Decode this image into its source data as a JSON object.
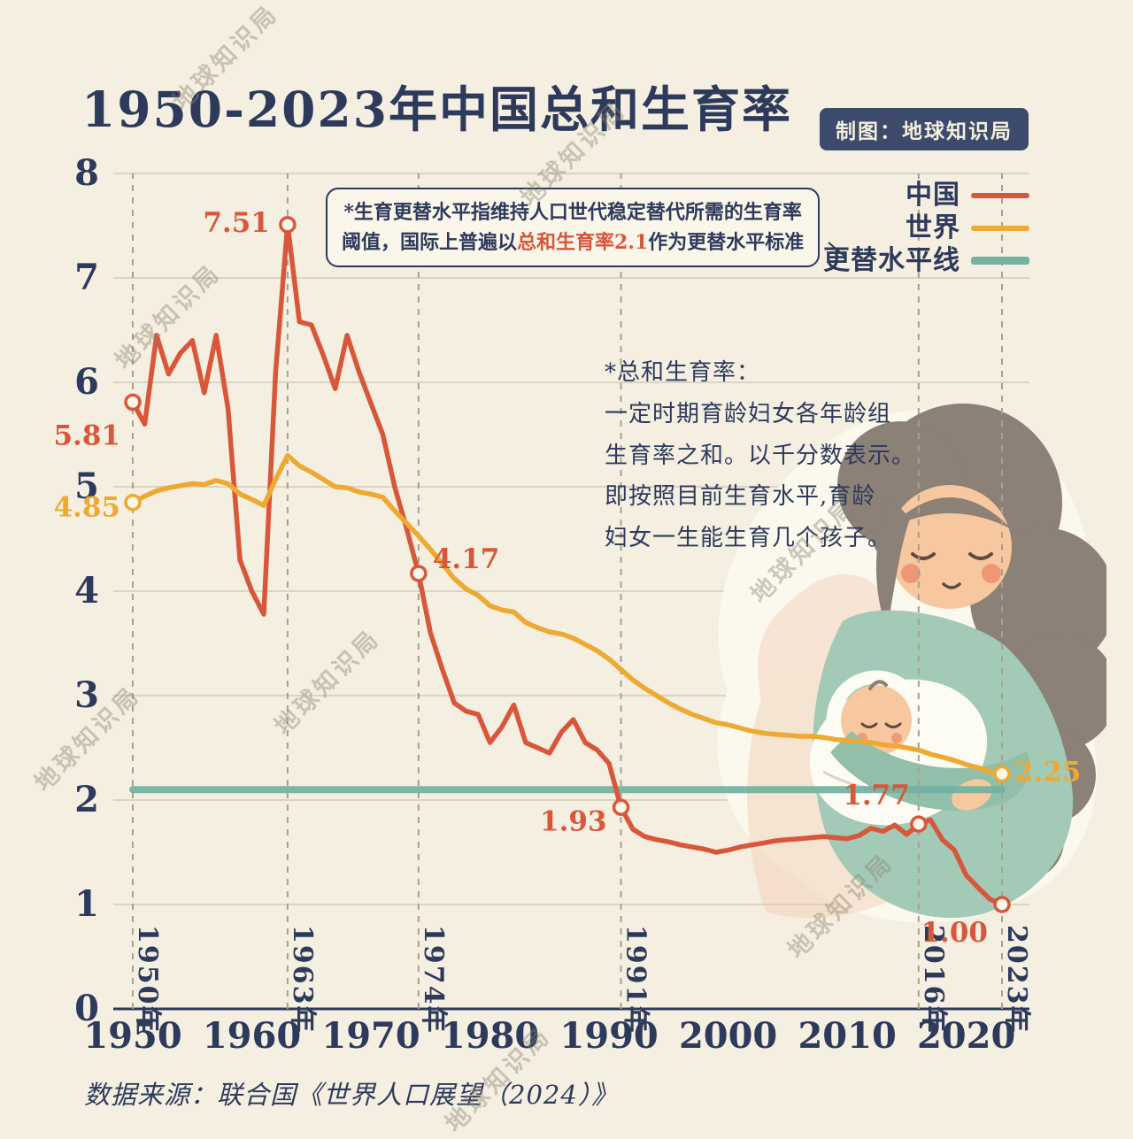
{
  "header": {
    "title": "1950-2023年中国总和生育率",
    "credit": "制图：地球知识局"
  },
  "watermark": "地球知识局",
  "colors": {
    "china": "#d8573b",
    "world": "#eda932",
    "replacement": "#72b2a1",
    "navy": "#2e3a5c",
    "badge": "#3c4a6b",
    "grid": "#d2cbb8",
    "dash": "#a9a08c"
  },
  "legend": [
    {
      "label": "中国",
      "key": "china"
    },
    {
      "label": "世界",
      "key": "world"
    },
    {
      "label": "更替水平线",
      "key": "replacement"
    }
  ],
  "annotation_box": {
    "line1": "*生育更替水平指维持人口世代稳定替代所需的生育率",
    "line2_pre": "阈值，国际上普遍以",
    "line2_highlight": "总和生育率2.1",
    "line2_post": "作为更替水平标准"
  },
  "note": {
    "text": "*总和生育率：\n一定时期育龄妇女各年龄组\n生育率之和。以千分数表示。\n即按照目前生育水平,育龄\n妇女一生能生育几个孩子。"
  },
  "footer": {
    "source": "数据来源：联合国《世界人口展望（2024）》"
  },
  "chart_data": {
    "type": "line",
    "title": "1950-2023年中国总和生育率",
    "xlabel": "",
    "ylabel": "",
    "x_range": [
      1950,
      2023
    ],
    "y_range": [
      0,
      8
    ],
    "x_ticks": [
      1950,
      1960,
      1970,
      1980,
      1990,
      2000,
      2010,
      2020
    ],
    "y_ticks": [
      0,
      1,
      2,
      3,
      4,
      5,
      6,
      7,
      8
    ],
    "grid": true,
    "legend_position": "top-right",
    "replacement_level": 2.1,
    "milestones": [
      {
        "year": 1950,
        "label": "1950年"
      },
      {
        "year": 1963,
        "label": "1963年"
      },
      {
        "year": 1974,
        "label": "1974年"
      },
      {
        "year": 1991,
        "label": "1991年"
      },
      {
        "year": 2016,
        "label": "2016年"
      },
      {
        "year": 2023,
        "label": "2023年"
      }
    ],
    "series": [
      {
        "name": "中国",
        "key": "china",
        "points": [
          [
            1950,
            5.81
          ],
          [
            1951,
            5.6
          ],
          [
            1952,
            6.45
          ],
          [
            1953,
            6.08
          ],
          [
            1954,
            6.28
          ],
          [
            1955,
            6.4
          ],
          [
            1956,
            5.9
          ],
          [
            1957,
            6.45
          ],
          [
            1958,
            5.75
          ],
          [
            1959,
            4.3
          ],
          [
            1960,
            4.0
          ],
          [
            1961,
            3.78
          ],
          [
            1962,
            6.1
          ],
          [
            1963,
            7.51
          ],
          [
            1964,
            6.58
          ],
          [
            1965,
            6.55
          ],
          [
            1966,
            6.26
          ],
          [
            1967,
            5.94
          ],
          [
            1968,
            6.45
          ],
          [
            1969,
            6.1
          ],
          [
            1970,
            5.8
          ],
          [
            1971,
            5.5
          ],
          [
            1972,
            5.0
          ],
          [
            1973,
            4.6
          ],
          [
            1974,
            4.17
          ],
          [
            1975,
            3.6
          ],
          [
            1976,
            3.25
          ],
          [
            1977,
            2.93
          ],
          [
            1978,
            2.85
          ],
          [
            1979,
            2.82
          ],
          [
            1980,
            2.55
          ],
          [
            1981,
            2.7
          ],
          [
            1982,
            2.91
          ],
          [
            1983,
            2.55
          ],
          [
            1984,
            2.5
          ],
          [
            1985,
            2.45
          ],
          [
            1986,
            2.65
          ],
          [
            1987,
            2.77
          ],
          [
            1988,
            2.55
          ],
          [
            1989,
            2.48
          ],
          [
            1990,
            2.35
          ],
          [
            1991,
            1.93
          ],
          [
            1992,
            1.72
          ],
          [
            1993,
            1.65
          ],
          [
            1994,
            1.62
          ],
          [
            1995,
            1.6
          ],
          [
            1996,
            1.57
          ],
          [
            1997,
            1.55
          ],
          [
            1998,
            1.53
          ],
          [
            1999,
            1.5
          ],
          [
            2000,
            1.52
          ],
          [
            2001,
            1.55
          ],
          [
            2002,
            1.57
          ],
          [
            2003,
            1.59
          ],
          [
            2004,
            1.61
          ],
          [
            2005,
            1.62
          ],
          [
            2006,
            1.63
          ],
          [
            2007,
            1.64
          ],
          [
            2008,
            1.65
          ],
          [
            2009,
            1.64
          ],
          [
            2010,
            1.63
          ],
          [
            2011,
            1.66
          ],
          [
            2012,
            1.73
          ],
          [
            2013,
            1.7
          ],
          [
            2014,
            1.76
          ],
          [
            2015,
            1.67
          ],
          [
            2016,
            1.77
          ],
          [
            2017,
            1.81
          ],
          [
            2018,
            1.62
          ],
          [
            2019,
            1.52
          ],
          [
            2020,
            1.28
          ],
          [
            2021,
            1.16
          ],
          [
            2022,
            1.05
          ],
          [
            2023,
            1.0
          ]
        ]
      },
      {
        "name": "世界",
        "key": "world",
        "points": [
          [
            1950,
            4.85
          ],
          [
            1951,
            4.91
          ],
          [
            1952,
            4.96
          ],
          [
            1953,
            4.99
          ],
          [
            1954,
            5.01
          ],
          [
            1955,
            5.03
          ],
          [
            1956,
            5.02
          ],
          [
            1957,
            5.06
          ],
          [
            1958,
            5.03
          ],
          [
            1959,
            4.93
          ],
          [
            1960,
            4.88
          ],
          [
            1961,
            4.82
          ],
          [
            1962,
            5.07
          ],
          [
            1963,
            5.3
          ],
          [
            1964,
            5.2
          ],
          [
            1965,
            5.14
          ],
          [
            1966,
            5.07
          ],
          [
            1967,
            5.0
          ],
          [
            1968,
            4.99
          ],
          [
            1969,
            4.95
          ],
          [
            1970,
            4.93
          ],
          [
            1971,
            4.9
          ],
          [
            1972,
            4.77
          ],
          [
            1973,
            4.65
          ],
          [
            1974,
            4.53
          ],
          [
            1975,
            4.4
          ],
          [
            1976,
            4.26
          ],
          [
            1977,
            4.12
          ],
          [
            1978,
            4.02
          ],
          [
            1979,
            3.96
          ],
          [
            1980,
            3.86
          ],
          [
            1981,
            3.82
          ],
          [
            1982,
            3.8
          ],
          [
            1983,
            3.7
          ],
          [
            1984,
            3.65
          ],
          [
            1985,
            3.61
          ],
          [
            1986,
            3.59
          ],
          [
            1987,
            3.55
          ],
          [
            1988,
            3.49
          ],
          [
            1989,
            3.43
          ],
          [
            1990,
            3.35
          ],
          [
            1991,
            3.25
          ],
          [
            1992,
            3.15
          ],
          [
            1993,
            3.07
          ],
          [
            1994,
            3.0
          ],
          [
            1995,
            2.93
          ],
          [
            1996,
            2.87
          ],
          [
            1997,
            2.82
          ],
          [
            1998,
            2.78
          ],
          [
            1999,
            2.74
          ],
          [
            2000,
            2.72
          ],
          [
            2001,
            2.69
          ],
          [
            2002,
            2.66
          ],
          [
            2003,
            2.64
          ],
          [
            2004,
            2.63
          ],
          [
            2005,
            2.62
          ],
          [
            2006,
            2.61
          ],
          [
            2007,
            2.61
          ],
          [
            2008,
            2.6
          ],
          [
            2009,
            2.58
          ],
          [
            2010,
            2.57
          ],
          [
            2011,
            2.56
          ],
          [
            2012,
            2.55
          ],
          [
            2013,
            2.53
          ],
          [
            2014,
            2.52
          ],
          [
            2015,
            2.5
          ],
          [
            2016,
            2.48
          ],
          [
            2017,
            2.44
          ],
          [
            2018,
            2.41
          ],
          [
            2019,
            2.38
          ],
          [
            2020,
            2.34
          ],
          [
            2021,
            2.31
          ],
          [
            2022,
            2.27
          ],
          [
            2023,
            2.25
          ]
        ]
      }
    ],
    "annotations": [
      {
        "key": "china",
        "year": 1950,
        "value": 5.81,
        "label": "5.81"
      },
      {
        "key": "world",
        "year": 1950,
        "value": 4.85,
        "label": "4.85"
      },
      {
        "key": "china",
        "year": 1963,
        "value": 7.51,
        "label": "7.51"
      },
      {
        "key": "china",
        "year": 1974,
        "value": 4.17,
        "label": "4.17"
      },
      {
        "key": "china",
        "year": 1991,
        "value": 1.93,
        "label": "1.93"
      },
      {
        "key": "china",
        "year": 2016,
        "value": 1.77,
        "label": "1.77"
      },
      {
        "key": "china",
        "year": 2023,
        "value": 1.0,
        "label": "1.00"
      },
      {
        "key": "world",
        "year": 2023,
        "value": 2.25,
        "label": "2.25"
      }
    ]
  }
}
